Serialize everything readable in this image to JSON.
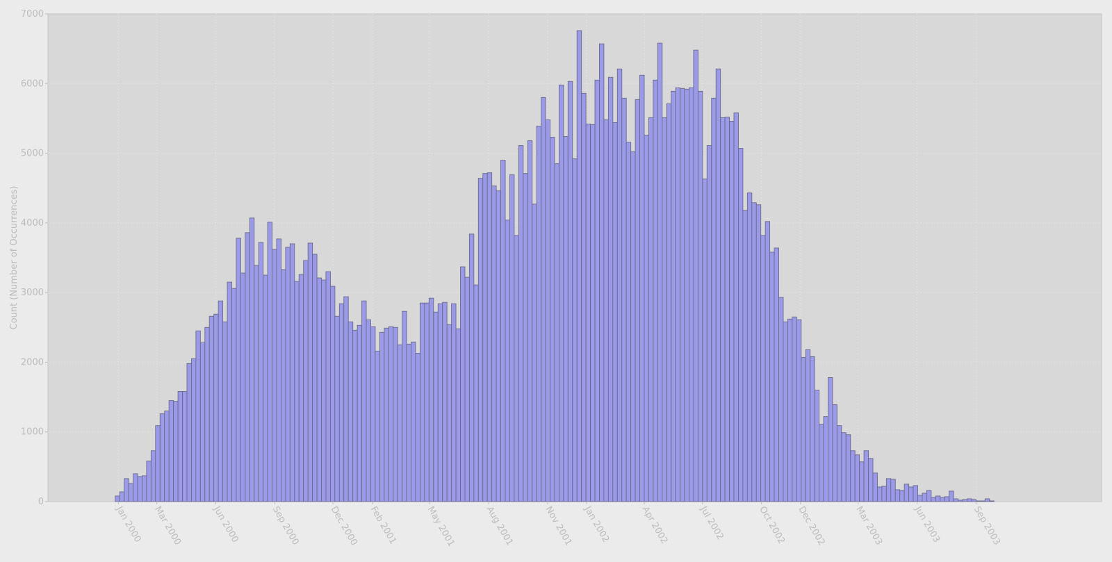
{
  "chart_data": {
    "type": "bar",
    "title": "",
    "xlabel": "",
    "ylabel": "Count (Number of Occurrences)",
    "ylim": [
      0,
      7000
    ],
    "yticks": [
      0,
      1000,
      2000,
      3000,
      4000,
      5000,
      6000,
      7000
    ],
    "xlim": [
      "1999-09-13",
      "2004-03-15"
    ],
    "xticks": [
      {
        "date": "2000-01-01",
        "label": "Jan 2000"
      },
      {
        "date": "2000-03-01",
        "label": "Mar 2000"
      },
      {
        "date": "2000-06-01",
        "label": "Jun 2000"
      },
      {
        "date": "2000-09-01",
        "label": "Sep 2000"
      },
      {
        "date": "2000-12-01",
        "label": "Dec 2000"
      },
      {
        "date": "2001-02-01",
        "label": "Feb 2001"
      },
      {
        "date": "2001-05-01",
        "label": "May 2001"
      },
      {
        "date": "2001-08-01",
        "label": "Aug 2001"
      },
      {
        "date": "2001-11-01",
        "label": "Nov 2001"
      },
      {
        "date": "2002-01-01",
        "label": "Jan 2002"
      },
      {
        "date": "2002-04-01",
        "label": "Apr 2002"
      },
      {
        "date": "2002-07-01",
        "label": "Jul 2002"
      },
      {
        "date": "2002-10-01",
        "label": "Oct 2002"
      },
      {
        "date": "2002-12-01",
        "label": "Dec 2002"
      },
      {
        "date": "2003-03-01",
        "label": "Mar 2003"
      },
      {
        "date": "2003-06-01",
        "label": "Jun 2003"
      },
      {
        "date": "2003-09-01",
        "label": "Sep 2003"
      }
    ],
    "bin": "weekly",
    "x_start": "1999-12-27",
    "values": [
      80,
      140,
      330,
      260,
      400,
      360,
      370,
      580,
      730,
      1090,
      1260,
      1300,
      1450,
      1440,
      1580,
      1580,
      1980,
      2050,
      2450,
      2280,
      2500,
      2660,
      2690,
      2880,
      2580,
      3150,
      3060,
      3780,
      3280,
      3860,
      4070,
      3390,
      3720,
      3250,
      4010,
      3620,
      3770,
      3330,
      3650,
      3700,
      3160,
      3260,
      3460,
      3710,
      3550,
      3210,
      3180,
      3300,
      3090,
      2660,
      2840,
      2940,
      2580,
      2460,
      2530,
      2880,
      2610,
      2510,
      2160,
      2430,
      2490,
      2510,
      2500,
      2250,
      2730,
      2260,
      2290,
      2130,
      2850,
      2850,
      2920,
      2720,
      2840,
      2860,
      2540,
      2840,
      2480,
      3370,
      3220,
      3840,
      3110,
      4640,
      4710,
      4720,
      4530,
      4460,
      4900,
      4040,
      4690,
      3820,
      5110,
      4710,
      5180,
      4270,
      5390,
      5800,
      5480,
      5230,
      4850,
      5980,
      5240,
      6030,
      4920,
      6760,
      5860,
      5420,
      5410,
      6050,
      6570,
      5480,
      6090,
      5440,
      6210,
      5790,
      5160,
      5020,
      5770,
      6120,
      5260,
      5510,
      6050,
      6580,
      5510,
      5710,
      5890,
      5940,
      5930,
      5920,
      5940,
      6480,
      5890,
      4630,
      5110,
      5790,
      6210,
      5510,
      5520,
      5460,
      5580,
      5070,
      4180,
      4430,
      4290,
      4260,
      3820,
      4020,
      3580,
      3640,
      2930,
      2580,
      2620,
      2650,
      2610,
      2070,
      2180,
      2080,
      1600,
      1110,
      1220,
      1780,
      1390,
      1090,
      990,
      960,
      730,
      670,
      570,
      730,
      620,
      410,
      210,
      220,
      330,
      320,
      170,
      160,
      250,
      210,
      230,
      90,
      120,
      160,
      60,
      80,
      60,
      70,
      150,
      40,
      20,
      30,
      40,
      30,
      10,
      10,
      40,
      10
    ]
  }
}
